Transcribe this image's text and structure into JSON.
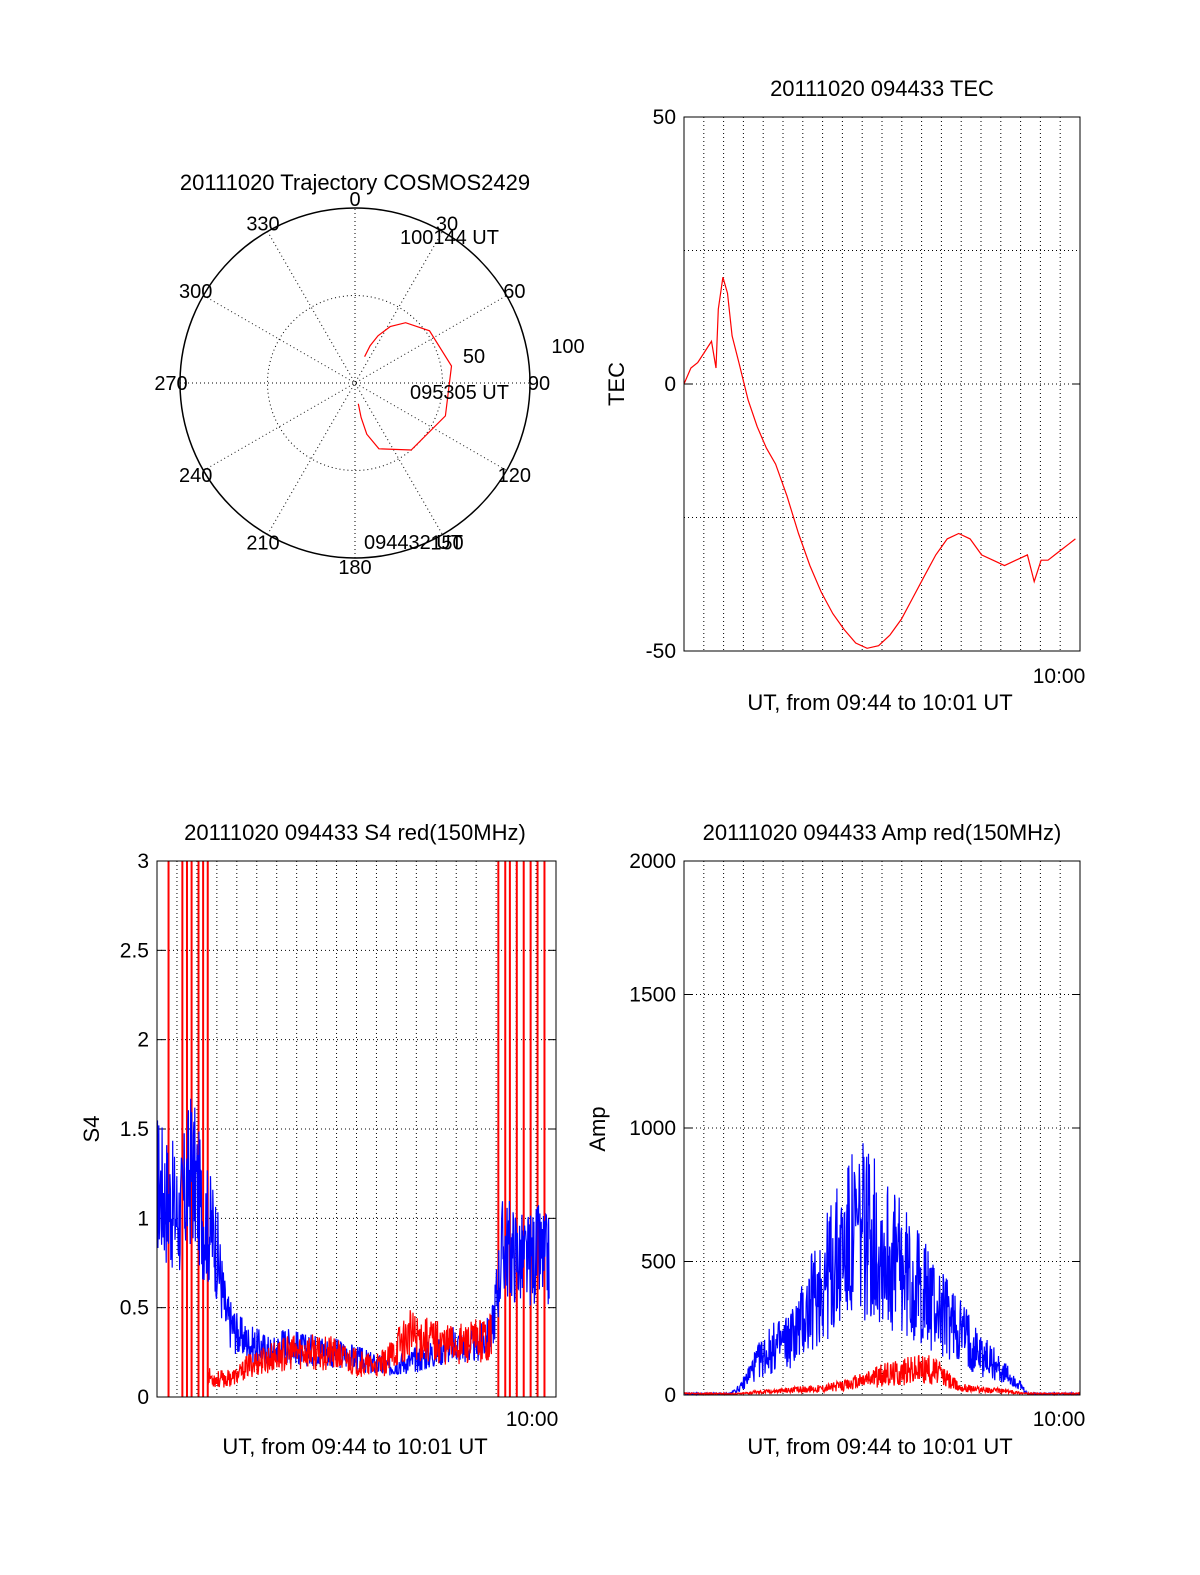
{
  "colors": {
    "primary": "#ff0000",
    "secondary": "#0000ff",
    "axes": "#000000"
  },
  "chart_data": [
    {
      "type": "line",
      "panel": "trajectory",
      "coordinate_system": "polar",
      "title": "20111020 Trajectory COSMOS2429",
      "angle_labels": [
        "0",
        "30",
        "60",
        "90",
        "120",
        "150",
        "180",
        "210",
        "240",
        "270",
        "300",
        "330"
      ],
      "radial_labels": [
        "50",
        "100"
      ],
      "radial_range": [
        0,
        100
      ],
      "grid": true,
      "series": [
        {
          "color": "#ff0000",
          "points": [
            {
              "az": 171,
              "el": 12
            },
            {
              "az": 170,
              "el": 20
            },
            {
              "az": 167,
              "el": 30
            },
            {
              "az": 160,
              "el": 40
            },
            {
              "az": 140,
              "el": 50
            },
            {
              "az": 110,
              "el": 55
            },
            {
              "az": 80,
              "el": 56
            },
            {
              "az": 55,
              "el": 52
            },
            {
              "az": 40,
              "el": 45
            },
            {
              "az": 32,
              "el": 38
            },
            {
              "az": 26,
              "el": 30
            },
            {
              "az": 22,
              "el": 23
            },
            {
              "az": 20,
              "el": 16
            }
          ]
        }
      ],
      "annotations": [
        "100144 UT",
        "095305 UT",
        "094432 UT"
      ]
    },
    {
      "type": "line",
      "panel": "tec",
      "title": "20111020 094433 TEC",
      "xlabel": "UT, from 09:44 to 10:01 UT",
      "ylabel": "TEC",
      "xlim_minutes": [
        0,
        17.3
      ],
      "ylim": [
        -50,
        50
      ],
      "yticks": [
        -50,
        0,
        50
      ],
      "xtick_labels": [
        "10:00"
      ],
      "grid": true,
      "series": [
        {
          "color": "#ff0000",
          "x": [
            0,
            0.3,
            0.6,
            0.9,
            1.2,
            1.4,
            1.5,
            1.7,
            1.9,
            2.1,
            2.4,
            2.8,
            3.2,
            3.6,
            4.0,
            4.5,
            5.0,
            5.5,
            6.0,
            6.5,
            7.0,
            7.5,
            8.0,
            8.5,
            9.0,
            9.5,
            10.0,
            10.5,
            11.0,
            11.5,
            12.0,
            12.5,
            13.0,
            13.5,
            14.0,
            14.5,
            15.0,
            15.3,
            15.6,
            15.9,
            16.2,
            16.5,
            16.8,
            17.1
          ],
          "values": [
            0,
            3,
            4,
            6,
            8,
            3,
            14,
            20,
            17,
            9,
            4,
            -3,
            -8,
            -12,
            -15,
            -21,
            -28,
            -34,
            -39,
            -43,
            -46,
            -48.5,
            -49.5,
            -49,
            -47,
            -44,
            -40,
            -36,
            -32,
            -29,
            -28,
            -29,
            -32,
            -33,
            -34,
            -33,
            -32,
            -37,
            -33,
            -33,
            -32,
            -31,
            -30,
            -29
          ]
        }
      ]
    },
    {
      "type": "line",
      "panel": "s4",
      "title": "20111020 094433 S4 red(150MHz)",
      "xlabel": "UT, from 09:44 to 10:01 UT",
      "ylabel": "S4",
      "xlim_minutes": [
        0,
        17.3
      ],
      "ylim": [
        0,
        3
      ],
      "yticks": [
        0,
        0.5,
        1,
        1.5,
        2,
        2.5,
        3
      ],
      "ytick_labels": [
        "0",
        "0.5",
        "1",
        "1.5",
        "2",
        "2.5",
        "3"
      ],
      "xtick_labels": [
        "10:00"
      ],
      "grid": true,
      "series": [
        {
          "color": "#0000ff",
          "x": [
            0,
            0.5,
            1.0,
            1.5,
            2.0,
            2.5,
            3.0,
            3.5,
            4.0,
            4.5,
            5.0,
            5.5,
            6.0,
            6.5,
            7.0,
            7.5,
            8.0,
            8.5,
            9.0,
            9.5,
            10.0,
            10.5,
            11.0,
            11.5,
            12.0,
            12.5,
            13.0,
            13.5,
            14.0,
            14.5,
            15.0,
            15.5,
            16.0,
            16.5,
            17.0
          ],
          "values": [
            1.2,
            1.1,
            1.0,
            1.3,
            1.0,
            0.9,
            0.45,
            0.35,
            0.3,
            0.28,
            0.25,
            0.3,
            0.28,
            0.26,
            0.27,
            0.25,
            0.24,
            0.22,
            0.2,
            0.18,
            0.17,
            0.19,
            0.2,
            0.22,
            0.25,
            0.28,
            0.3,
            0.28,
            0.3,
            0.35,
            0.85,
            0.8,
            0.75,
            0.8,
            0.75
          ]
        },
        {
          "color": "#ff0000",
          "x": [
            2.2,
            2.5,
            3.0,
            3.5,
            4.0,
            4.5,
            5.0,
            5.5,
            6.0,
            6.5,
            7.0,
            7.5,
            8.0,
            8.5,
            9.0,
            9.5,
            10.0,
            10.5,
            11.0,
            11.5,
            12.0,
            12.5,
            13.0,
            13.5,
            14.0,
            14.5
          ],
          "values": [
            0.12,
            0.1,
            0.1,
            0.12,
            0.18,
            0.2,
            0.22,
            0.24,
            0.25,
            0.26,
            0.24,
            0.25,
            0.22,
            0.2,
            0.18,
            0.17,
            0.2,
            0.3,
            0.35,
            0.33,
            0.32,
            0.3,
            0.3,
            0.3,
            0.32,
            0.35
          ]
        }
      ]
    },
    {
      "type": "line",
      "panel": "amp",
      "title": "20111020 094433 Amp red(150MHz)",
      "xlabel": "UT, from 09:44 to 10:01 UT",
      "ylabel": "Amp",
      "xlim_minutes": [
        0,
        17.3
      ],
      "ylim": [
        0,
        2000
      ],
      "yticks": [
        0,
        500,
        1000,
        1500,
        2000
      ],
      "xtick_labels": [
        "10:00"
      ],
      "grid": true,
      "series": [
        {
          "color": "#0000ff",
          "x": [
            0,
            2.0,
            2.5,
            3.0,
            3.5,
            4.0,
            4.5,
            5.0,
            5.5,
            6.0,
            6.5,
            7.0,
            7.5,
            8.0,
            8.5,
            9.0,
            9.5,
            10.0,
            10.5,
            11.0,
            11.5,
            12.0,
            12.5,
            13.0,
            13.5,
            14.0,
            14.5,
            15.0,
            17.3
          ],
          "values": [
            5,
            5,
            30,
            100,
            150,
            180,
            200,
            250,
            330,
            420,
            480,
            550,
            600,
            620,
            560,
            520,
            470,
            420,
            380,
            330,
            290,
            250,
            200,
            150,
            120,
            80,
            50,
            5,
            5
          ]
        },
        {
          "color": "#ff0000",
          "x": [
            0,
            2.5,
            3.0,
            4.0,
            5.0,
            6.0,
            7.0,
            8.0,
            9.0,
            10.0,
            10.5,
            11.0,
            11.5,
            12.0,
            12.5,
            13.0,
            14.0,
            15.0,
            17.3
          ],
          "values": [
            5,
            5,
            10,
            15,
            20,
            25,
            35,
            60,
            80,
            95,
            100,
            90,
            60,
            30,
            25,
            20,
            15,
            5,
            5
          ]
        }
      ]
    }
  ]
}
